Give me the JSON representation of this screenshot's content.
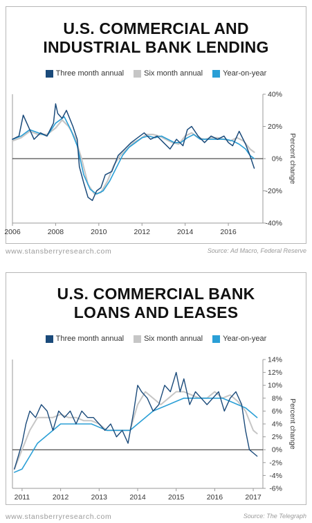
{
  "charts": [
    {
      "title_lines": [
        "U.S. COMMERCIAL AND",
        "INDUSTRIAL BANK LENDING"
      ],
      "footer_site": "www.stansberryresearch.com",
      "footer_source": "Source: Ad Macro, Federal Reserve"
    },
    {
      "title_lines": [
        "U.S. COMMERCIAL BANK",
        "LOANS AND LEASES"
      ],
      "footer_site": "www.stansberryresearch.com",
      "footer_source": "Source: The Telegraph"
    }
  ],
  "chart_data": [
    {
      "type": "line",
      "title": "U.S. COMMERCIAL AND INDUSTRIAL BANK LENDING",
      "ylabel": "Percent change",
      "xlim": [
        2006,
        2017.6
      ],
      "ylim": [
        -40,
        40
      ],
      "x_ticks": [
        2006,
        2008,
        2010,
        2012,
        2014,
        2016
      ],
      "x_tick_labels": [
        "2006",
        "2008",
        "2010",
        "2012",
        "2014",
        "2016"
      ],
      "y_ticks": [
        -40,
        -20,
        0,
        20,
        40
      ],
      "y_tick_labels": [
        "-40%",
        "-20%",
        "0%",
        "20%",
        "40%"
      ],
      "grid": false,
      "legend_position": "top",
      "series": [
        {
          "name": "Three month annual",
          "color": "#1a4a7a",
          "width": 1.5,
          "x": [
            2006.0,
            2006.3,
            2006.5,
            2006.8,
            2007.0,
            2007.3,
            2007.6,
            2007.9,
            2008.0,
            2008.1,
            2008.3,
            2008.5,
            2008.8,
            2009.0,
            2009.1,
            2009.3,
            2009.5,
            2009.7,
            2009.9,
            2010.1,
            2010.3,
            2010.6,
            2010.9,
            2011.2,
            2011.5,
            2011.8,
            2012.1,
            2012.4,
            2012.7,
            2013.0,
            2013.3,
            2013.6,
            2013.9,
            2014.1,
            2014.3,
            2014.6,
            2014.9,
            2015.2,
            2015.5,
            2015.8,
            2016.0,
            2016.2,
            2016.5,
            2016.8,
            2017.0,
            2017.2
          ],
          "y": [
            12,
            14,
            27,
            18,
            12,
            16,
            14,
            22,
            34,
            28,
            25,
            30,
            20,
            12,
            -5,
            -15,
            -24,
            -26,
            -20,
            -18,
            -10,
            -8,
            2,
            6,
            10,
            13,
            16,
            12,
            14,
            10,
            6,
            12,
            8,
            18,
            20,
            14,
            10,
            14,
            12,
            14,
            10,
            8,
            17,
            9,
            2,
            -6
          ]
        },
        {
          "name": "Six month annual",
          "color": "#c6c6c6",
          "width": 2.2,
          "x": [
            2006.0,
            2006.4,
            2006.8,
            2007.2,
            2007.6,
            2008.0,
            2008.3,
            2008.6,
            2008.9,
            2009.2,
            2009.5,
            2009.8,
            2010.1,
            2010.4,
            2010.7,
            2011.0,
            2011.3,
            2011.6,
            2011.9,
            2012.2,
            2012.5,
            2012.8,
            2013.1,
            2013.4,
            2013.7,
            2014.0,
            2014.3,
            2014.6,
            2014.9,
            2015.2,
            2015.5,
            2015.8,
            2016.1,
            2016.4,
            2016.7,
            2017.0,
            2017.2
          ],
          "y": [
            11,
            13,
            17,
            15,
            15,
            19,
            24,
            20,
            13,
            0,
            -16,
            -22,
            -21,
            -14,
            -4,
            2,
            6,
            10,
            12,
            15,
            15,
            14,
            12,
            10,
            9,
            14,
            16,
            13,
            12,
            13,
            13,
            12,
            11,
            13,
            11,
            6,
            4
          ]
        },
        {
          "name": "Year-on-year",
          "color": "#2a9fd6",
          "width": 1.6,
          "x": [
            2006.0,
            2006.4,
            2006.8,
            2007.2,
            2007.6,
            2008.0,
            2008.4,
            2008.7,
            2009.0,
            2009.3,
            2009.6,
            2009.9,
            2010.2,
            2010.5,
            2010.8,
            2011.1,
            2011.4,
            2011.7,
            2012.0,
            2012.3,
            2012.6,
            2012.9,
            2013.2,
            2013.5,
            2013.8,
            2014.1,
            2014.4,
            2014.7,
            2015.0,
            2015.3,
            2015.6,
            2015.9,
            2016.2,
            2016.5,
            2016.8,
            2017.0,
            2017.2
          ],
          "y": [
            12,
            14,
            18,
            16,
            14,
            22,
            26,
            18,
            8,
            -10,
            -19,
            -22,
            -20,
            -14,
            -6,
            2,
            7,
            10,
            13,
            14,
            13,
            14,
            12,
            10,
            10,
            13,
            15,
            12,
            12,
            12,
            12,
            12,
            11,
            9,
            6,
            2,
            0
          ]
        }
      ]
    },
    {
      "type": "line",
      "title": "U.S. COMMERCIAL BANK LOANS AND LEASES",
      "ylabel": "Percent change",
      "xlim": [
        2010.75,
        2017.25
      ],
      "ylim": [
        -6,
        14
      ],
      "x_ticks": [
        2011,
        2012,
        2013,
        2014,
        2015,
        2016,
        2017
      ],
      "x_tick_labels": [
        "2011",
        "2012",
        "2013",
        "2014",
        "2015",
        "2016",
        "2017"
      ],
      "y_ticks": [
        -6,
        -4,
        -2,
        0,
        2,
        4,
        6,
        8,
        10,
        12,
        14
      ],
      "y_tick_labels": [
        "-6%",
        "-4%",
        "-2%",
        "0%",
        "2%",
        "4%",
        "6%",
        "8%",
        "10%",
        "12%",
        "14%"
      ],
      "grid": false,
      "legend_position": "top",
      "series": [
        {
          "name": "Three month annual",
          "color": "#1a4a7a",
          "width": 1.4,
          "x": [
            2010.8,
            2010.9,
            2011.0,
            2011.1,
            2011.2,
            2011.35,
            2011.5,
            2011.65,
            2011.8,
            2011.95,
            2012.1,
            2012.25,
            2012.4,
            2012.55,
            2012.7,
            2012.85,
            2013.0,
            2013.15,
            2013.3,
            2013.45,
            2013.6,
            2013.75,
            2013.9,
            2014.0,
            2014.1,
            2014.25,
            2014.4,
            2014.55,
            2014.7,
            2014.85,
            2015.0,
            2015.1,
            2015.2,
            2015.35,
            2015.5,
            2015.65,
            2015.8,
            2015.95,
            2016.1,
            2016.25,
            2016.4,
            2016.55,
            2016.7,
            2016.8,
            2016.9,
            2017.0,
            2017.1
          ],
          "y": [
            -3,
            -1,
            1,
            4,
            6,
            5,
            7,
            6,
            3,
            6,
            5,
            6,
            4,
            6,
            5,
            5,
            4,
            3,
            4,
            2,
            3,
            1,
            6,
            10,
            9,
            8,
            6,
            7,
            10,
            9,
            12,
            9,
            11,
            7,
            9,
            8,
            7,
            8,
            9,
            6,
            8,
            9,
            7,
            3,
            0,
            -0.5,
            -1
          ]
        },
        {
          "name": "Six month annual",
          "color": "#c6c6c6",
          "width": 2.0,
          "x": [
            2010.8,
            2011.0,
            2011.2,
            2011.4,
            2011.6,
            2011.8,
            2012.0,
            2012.2,
            2012.4,
            2012.6,
            2012.8,
            2013.0,
            2013.2,
            2013.4,
            2013.6,
            2013.8,
            2014.0,
            2014.2,
            2014.4,
            2014.6,
            2014.8,
            2015.0,
            2015.2,
            2015.4,
            2015.6,
            2015.8,
            2016.0,
            2016.2,
            2016.4,
            2016.6,
            2016.8,
            2017.0,
            2017.1
          ],
          "y": [
            -3,
            0,
            3,
            5,
            5,
            5,
            5.5,
            5,
            5,
            4.5,
            4.5,
            4,
            3,
            3,
            3,
            3,
            7,
            9,
            8,
            7,
            8,
            9,
            9,
            8.5,
            8,
            8,
            9,
            8,
            8.5,
            7.5,
            6,
            3,
            2.5
          ]
        },
        {
          "name": "Year-on-year",
          "color": "#2a9fd6",
          "width": 1.6,
          "x": [
            2010.8,
            2011.0,
            2011.2,
            2011.4,
            2011.6,
            2011.8,
            2012.0,
            2012.2,
            2012.4,
            2012.6,
            2012.8,
            2013.0,
            2013.2,
            2013.4,
            2013.6,
            2013.8,
            2014.0,
            2014.2,
            2014.4,
            2014.6,
            2014.8,
            2015.0,
            2015.2,
            2015.4,
            2015.6,
            2015.8,
            2016.0,
            2016.2,
            2016.4,
            2016.6,
            2016.8,
            2017.0,
            2017.1
          ],
          "y": [
            -3.5,
            -3,
            -1,
            1,
            2,
            3,
            4,
            4,
            4,
            4,
            4,
            3.5,
            3,
            3,
            3,
            3,
            4,
            5,
            6,
            6.5,
            7,
            7.5,
            8,
            8,
            8,
            8,
            8,
            8,
            7.5,
            7,
            6.5,
            5.5,
            5
          ]
        }
      ]
    }
  ]
}
